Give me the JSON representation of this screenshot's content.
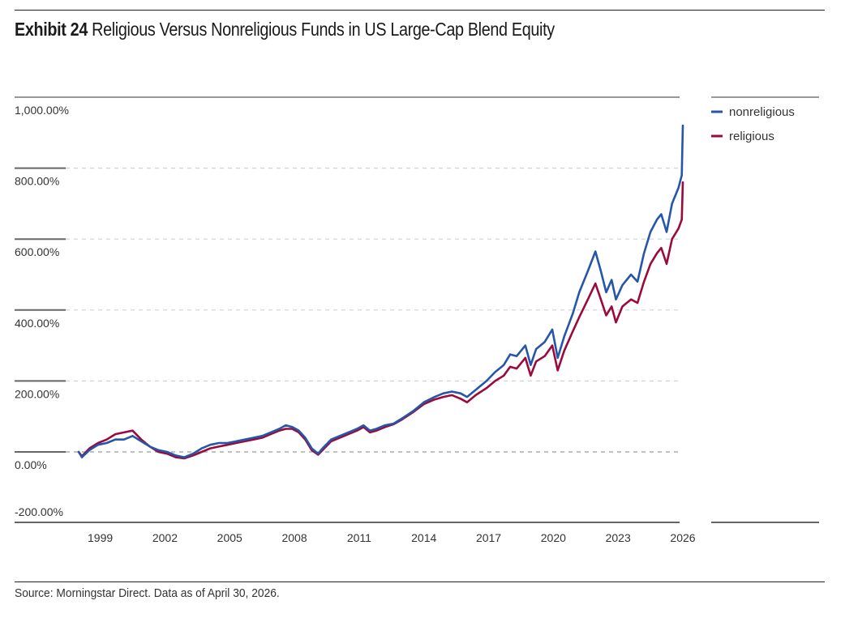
{
  "title": {
    "exhibit": "Exhibit 24",
    "text": "Religious Versus Nonreligious Funds in US Large-Cap Blend Equity"
  },
  "source": "Source: Morningstar Direct. Data as of April 30, 2026.",
  "colors": {
    "nonreligious": "#2656a8",
    "religious": "#9b0a3c",
    "gridline": "#cccccc",
    "axis": "#555555"
  },
  "chart_data": {
    "type": "line",
    "title": "Religious Versus Nonreligious Funds in US Large-Cap Blend Equity",
    "xlabel": "",
    "ylabel": "",
    "xlim": [
      1998.0,
      2026.0
    ],
    "ylim": [
      -200,
      1000
    ],
    "x_ticks": [
      1999,
      2002,
      2005,
      2008,
      2011,
      2014,
      2017,
      2020,
      2023,
      2026
    ],
    "x_tick_labels": [
      "1999",
      "2002",
      "2005",
      "2008",
      "2011",
      "2014",
      "2017",
      "2020",
      "2023",
      "2026"
    ],
    "y_ticks": [
      -200,
      0,
      200,
      400,
      600,
      800,
      1000
    ],
    "y_tick_labels": [
      "-200.00%",
      "0.00%",
      "200.00%",
      "400.00%",
      "600.00%",
      "800.00%",
      "1,000.00%"
    ],
    "grid": true,
    "legend_position": "top-right",
    "series": [
      {
        "name": "nonreligious",
        "color": "#2656a8",
        "points": [
          [
            1998.0,
            0
          ],
          [
            1998.15,
            -15
          ],
          [
            1998.5,
            5
          ],
          [
            1998.9,
            20
          ],
          [
            1999.3,
            25
          ],
          [
            1999.7,
            35
          ],
          [
            2000.1,
            35
          ],
          [
            2000.5,
            45
          ],
          [
            2000.9,
            30
          ],
          [
            2001.3,
            15
          ],
          [
            2001.7,
            5
          ],
          [
            2002.1,
            0
          ],
          [
            2002.5,
            -10
          ],
          [
            2002.9,
            -15
          ],
          [
            2003.3,
            -5
          ],
          [
            2003.7,
            10
          ],
          [
            2004.1,
            20
          ],
          [
            2004.5,
            25
          ],
          [
            2004.9,
            25
          ],
          [
            2005.3,
            30
          ],
          [
            2005.7,
            35
          ],
          [
            2006.1,
            40
          ],
          [
            2006.5,
            45
          ],
          [
            2006.9,
            55
          ],
          [
            2007.3,
            65
          ],
          [
            2007.6,
            75
          ],
          [
            2007.9,
            70
          ],
          [
            2008.2,
            60
          ],
          [
            2008.5,
            40
          ],
          [
            2008.8,
            10
          ],
          [
            2009.1,
            -5
          ],
          [
            2009.3,
            10
          ],
          [
            2009.7,
            35
          ],
          [
            2010.1,
            45
          ],
          [
            2010.5,
            55
          ],
          [
            2010.9,
            65
          ],
          [
            2011.2,
            75
          ],
          [
            2011.5,
            60
          ],
          [
            2011.8,
            65
          ],
          [
            2012.2,
            75
          ],
          [
            2012.6,
            80
          ],
          [
            2013.0,
            95
          ],
          [
            2013.5,
            115
          ],
          [
            2014.0,
            140
          ],
          [
            2014.5,
            155
          ],
          [
            2014.9,
            165
          ],
          [
            2015.3,
            170
          ],
          [
            2015.7,
            165
          ],
          [
            2016.0,
            155
          ],
          [
            2016.4,
            175
          ],
          [
            2016.9,
            200
          ],
          [
            2017.3,
            225
          ],
          [
            2017.7,
            245
          ],
          [
            2018.0,
            275
          ],
          [
            2018.3,
            270
          ],
          [
            2018.7,
            300
          ],
          [
            2018.95,
            245
          ],
          [
            2019.2,
            290
          ],
          [
            2019.6,
            310
          ],
          [
            2019.95,
            345
          ],
          [
            2020.2,
            265
          ],
          [
            2020.5,
            325
          ],
          [
            2020.9,
            390
          ],
          [
            2021.2,
            450
          ],
          [
            2021.6,
            510
          ],
          [
            2021.95,
            565
          ],
          [
            2022.2,
            510
          ],
          [
            2022.45,
            450
          ],
          [
            2022.7,
            485
          ],
          [
            2022.9,
            430
          ],
          [
            2023.2,
            470
          ],
          [
            2023.6,
            500
          ],
          [
            2023.9,
            480
          ],
          [
            2024.2,
            560
          ],
          [
            2024.5,
            620
          ],
          [
            2024.8,
            655
          ],
          [
            2025.0,
            670
          ],
          [
            2025.25,
            620
          ],
          [
            2025.5,
            700
          ],
          [
            2025.8,
            745
          ],
          [
            2025.95,
            780
          ],
          [
            2026.0,
            920
          ]
        ]
      },
      {
        "name": "religious",
        "color": "#9b0a3c",
        "points": [
          [
            1998.0,
            0
          ],
          [
            1998.15,
            -12
          ],
          [
            1998.5,
            10
          ],
          [
            1998.9,
            25
          ],
          [
            1999.3,
            35
          ],
          [
            1999.7,
            50
          ],
          [
            2000.1,
            55
          ],
          [
            2000.5,
            60
          ],
          [
            2000.9,
            35
          ],
          [
            2001.3,
            15
          ],
          [
            2001.7,
            0
          ],
          [
            2002.1,
            -5
          ],
          [
            2002.5,
            -15
          ],
          [
            2002.9,
            -18
          ],
          [
            2003.3,
            -10
          ],
          [
            2003.7,
            0
          ],
          [
            2004.1,
            10
          ],
          [
            2004.5,
            15
          ],
          [
            2004.9,
            20
          ],
          [
            2005.3,
            25
          ],
          [
            2005.7,
            30
          ],
          [
            2006.1,
            35
          ],
          [
            2006.5,
            40
          ],
          [
            2006.9,
            50
          ],
          [
            2007.3,
            60
          ],
          [
            2007.6,
            65
          ],
          [
            2007.9,
            65
          ],
          [
            2008.2,
            55
          ],
          [
            2008.5,
            35
          ],
          [
            2008.8,
            5
          ],
          [
            2009.1,
            -8
          ],
          [
            2009.3,
            5
          ],
          [
            2009.7,
            30
          ],
          [
            2010.1,
            40
          ],
          [
            2010.5,
            50
          ],
          [
            2010.9,
            60
          ],
          [
            2011.2,
            70
          ],
          [
            2011.5,
            55
          ],
          [
            2011.8,
            60
          ],
          [
            2012.2,
            70
          ],
          [
            2012.6,
            78
          ],
          [
            2013.0,
            92
          ],
          [
            2013.5,
            112
          ],
          [
            2014.0,
            135
          ],
          [
            2014.5,
            148
          ],
          [
            2014.9,
            155
          ],
          [
            2015.3,
            160
          ],
          [
            2015.7,
            150
          ],
          [
            2016.0,
            140
          ],
          [
            2016.4,
            160
          ],
          [
            2016.9,
            180
          ],
          [
            2017.3,
            200
          ],
          [
            2017.7,
            215
          ],
          [
            2018.0,
            240
          ],
          [
            2018.3,
            235
          ],
          [
            2018.7,
            265
          ],
          [
            2018.95,
            215
          ],
          [
            2019.2,
            255
          ],
          [
            2019.6,
            270
          ],
          [
            2019.95,
            300
          ],
          [
            2020.2,
            230
          ],
          [
            2020.5,
            285
          ],
          [
            2020.9,
            340
          ],
          [
            2021.2,
            380
          ],
          [
            2021.6,
            430
          ],
          [
            2021.95,
            475
          ],
          [
            2022.2,
            430
          ],
          [
            2022.45,
            385
          ],
          [
            2022.7,
            410
          ],
          [
            2022.9,
            365
          ],
          [
            2023.2,
            410
          ],
          [
            2023.6,
            430
          ],
          [
            2023.9,
            420
          ],
          [
            2024.2,
            480
          ],
          [
            2024.5,
            530
          ],
          [
            2024.8,
            560
          ],
          [
            2025.0,
            575
          ],
          [
            2025.25,
            530
          ],
          [
            2025.5,
            600
          ],
          [
            2025.8,
            630
          ],
          [
            2025.95,
            655
          ],
          [
            2026.0,
            760
          ]
        ]
      }
    ]
  }
}
